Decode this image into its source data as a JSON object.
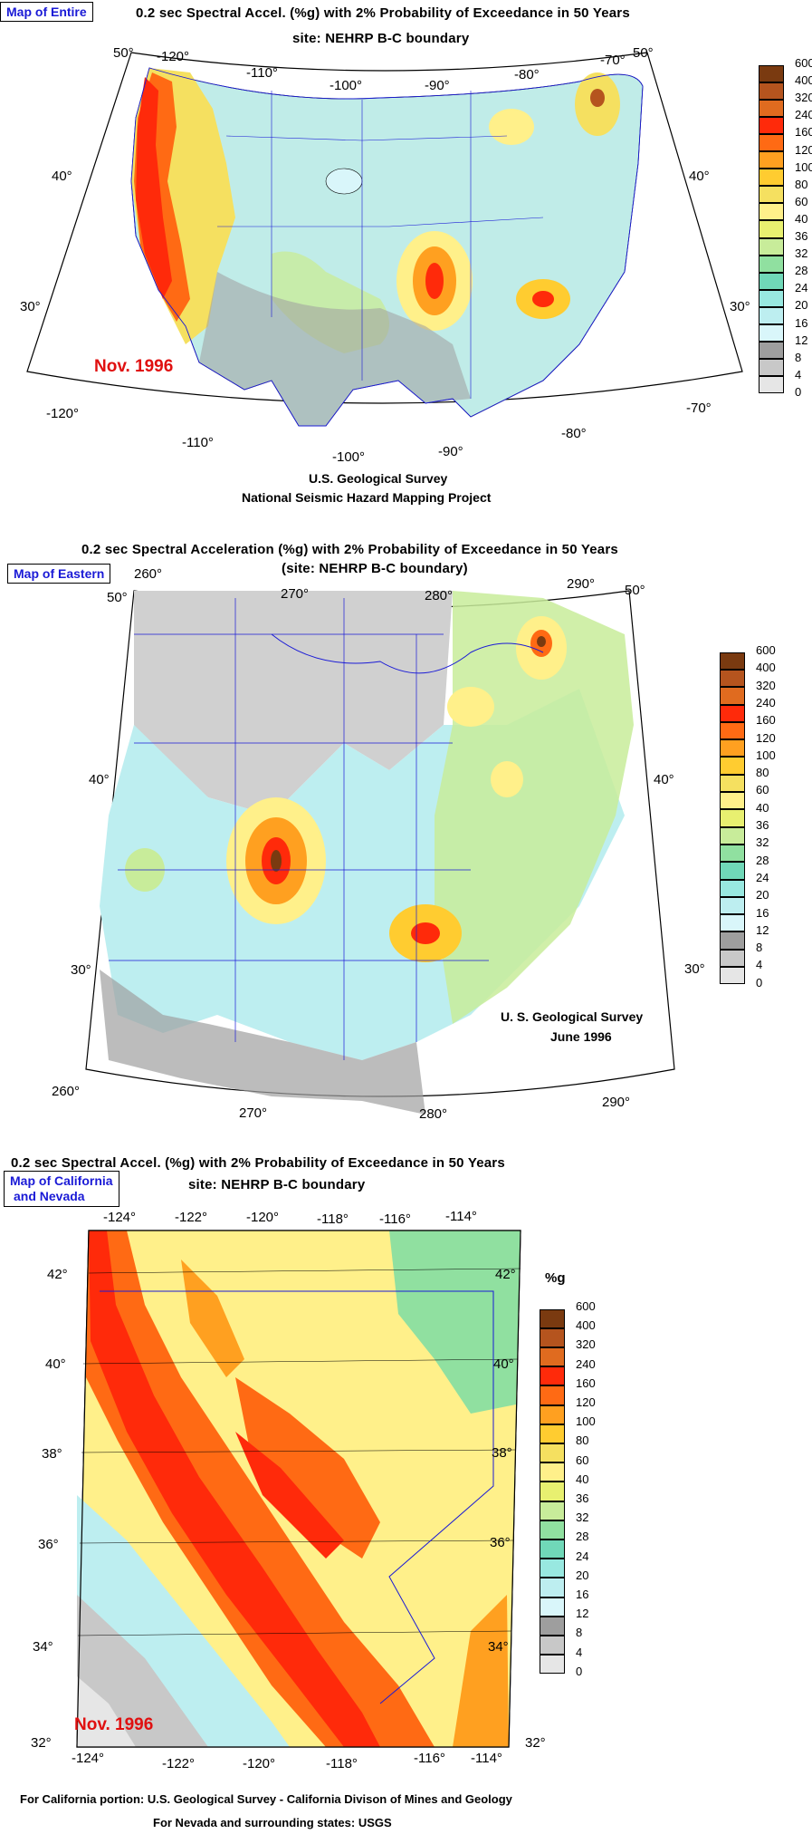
{
  "legend_levels": [
    "600",
    "400",
    "320",
    "240",
    "160",
    "120",
    "100",
    "80",
    "60",
    "40",
    "36",
    "32",
    "28",
    "24",
    "20",
    "16",
    "12",
    "8",
    "4",
    "0"
  ],
  "legend_colors": [
    "#7a3a10",
    "#b5541e",
    "#e06b1f",
    "#ff2a0a",
    "#ff6a14",
    "#ffa020",
    "#ffcc30",
    "#f5e060",
    "#fff08a",
    "#e8f070",
    "#c8ec9a",
    "#90e0a0",
    "#70d8b8",
    "#98e8e0",
    "#bdeef0",
    "#d9f6fa",
    "#9e9e9e",
    "#c8c8c8",
    "#e6e6e6",
    "#ffffff"
  ],
  "map1": {
    "button": "Map of Entire",
    "title": "0.2 sec Spectral Accel. (%g) with 2% Probability of Exceedance in 50 Years",
    "subtitle": "site: NEHRP B-C boundary",
    "date": "Nov. 1996",
    "credit1": "U.S. Geological Survey",
    "credit2": "National Seismic Hazard Mapping Project",
    "lon_top": [
      "-120°",
      "-110°",
      "-100°",
      "-90°",
      "-80°",
      "-70°"
    ],
    "lon_bottom": [
      "-120°",
      "-110°",
      "-100°",
      "-90°",
      "-80°",
      "-70°"
    ],
    "lat_left": [
      "50°",
      "40°",
      "30°"
    ],
    "lat_right": [
      "50°",
      "40°",
      "30°"
    ]
  },
  "map2": {
    "button": "Map of Eastern",
    "title": "0.2 sec Spectral Acceleration (%g) with 2% Probability of Exceedance in 50 Years",
    "subtitle": "(site: NEHRP B-C boundary)",
    "credit1": "U. S. Geological Survey",
    "credit2": "June 1996",
    "lon_top": [
      "260°",
      "270°",
      "280°",
      "290°"
    ],
    "lon_bottom": [
      "260°",
      "270°",
      "280°",
      "290°"
    ],
    "lat_left": [
      "50°",
      "40°",
      "30°"
    ],
    "lat_right": [
      "50°",
      "40°",
      "30°"
    ]
  },
  "map3": {
    "button_line1": "Map of California",
    "button_line2": "and Nevada",
    "title": "0.2 sec Spectral Accel. (%g) with 2% Probability of Exceedance in 50 Years",
    "subtitle": "site: NEHRP B-C boundary",
    "unit": "%g",
    "date": "Nov. 1996",
    "credit1": "For California portion: U.S. Geological Survey - California Divison of Mines and Geology",
    "credit2": "For Nevada and surrounding states: USGS",
    "lon_top": [
      "-124°",
      "-122°",
      "-120°",
      "-118°",
      "-116°",
      "-114°"
    ],
    "lon_bottom": [
      "-124°",
      "-122°",
      "-120°",
      "-118°",
      "-116°",
      "-114°"
    ],
    "lat_left": [
      "42°",
      "40°",
      "38°",
      "36°",
      "34°",
      "32°"
    ],
    "lat_right": [
      "42°",
      "40°",
      "38°",
      "36°",
      "34°",
      "32°"
    ]
  }
}
